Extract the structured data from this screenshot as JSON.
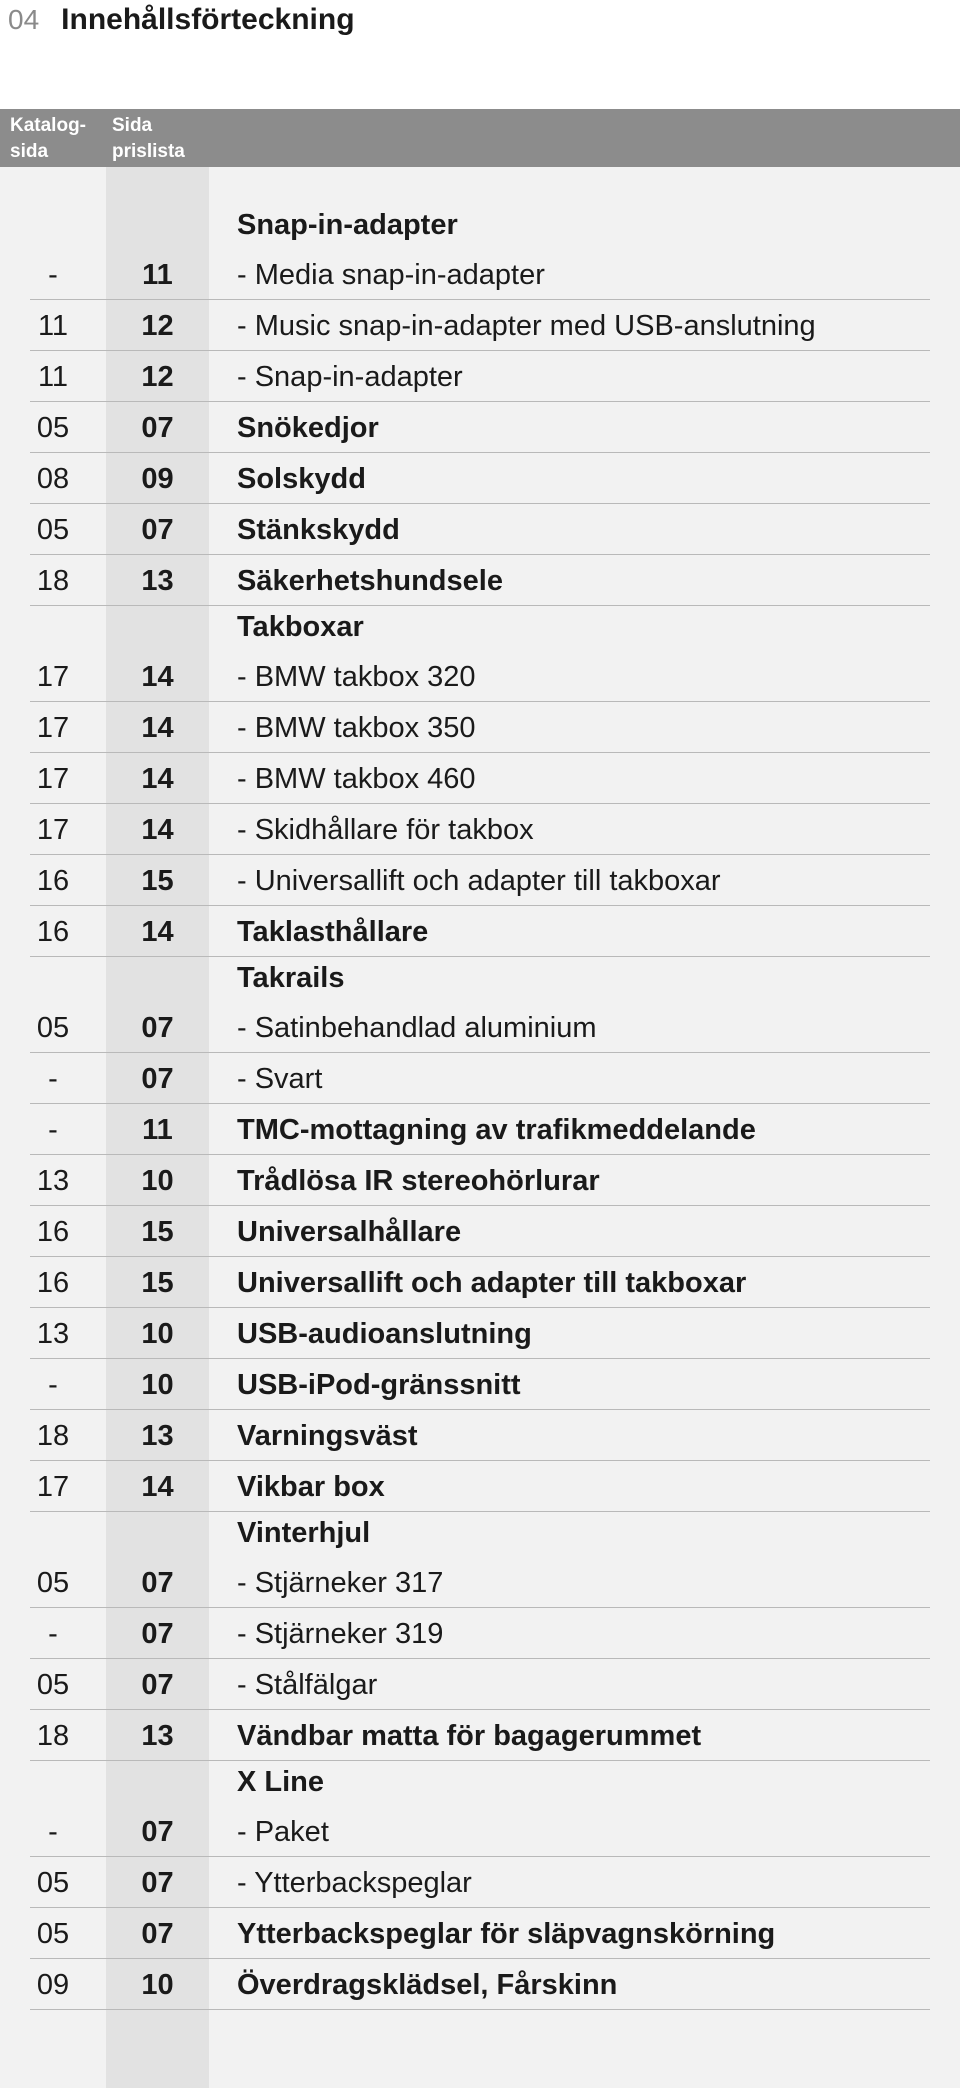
{
  "header": {
    "page_number": "04",
    "title": "Innehållsförteckning"
  },
  "columns": {
    "catalog": "Katalog-sida",
    "catalog_line1": "Katalog-",
    "catalog_line2": "sida",
    "pricelist_line1": "Sida",
    "pricelist_line2": "prislista"
  },
  "rows": [
    {
      "group": "Snap-in-adapter",
      "catalog": "-",
      "pricelist": "11",
      "text": "- Media snap-in-adapter",
      "bold": false
    },
    {
      "group": "",
      "catalog": "11",
      "pricelist": "12",
      "text": "- Music snap-in-adapter med USB-anslutning",
      "bold": false
    },
    {
      "group": "",
      "catalog": "11",
      "pricelist": "12",
      "text": "- Snap-in-adapter",
      "bold": false
    },
    {
      "group": "",
      "catalog": "05",
      "pricelist": "07",
      "text": "Snökedjor",
      "bold": true
    },
    {
      "group": "",
      "catalog": "08",
      "pricelist": "09",
      "text": "Solskydd",
      "bold": true
    },
    {
      "group": "",
      "catalog": "05",
      "pricelist": "07",
      "text": "Stänkskydd",
      "bold": true
    },
    {
      "group": "",
      "catalog": "18",
      "pricelist": "13",
      "text": "Säkerhetshundsele",
      "bold": true
    },
    {
      "group": "Takboxar",
      "catalog": "17",
      "pricelist": "14",
      "text": "- BMW takbox 320",
      "bold": false
    },
    {
      "group": "",
      "catalog": "17",
      "pricelist": "14",
      "text": "- BMW takbox 350",
      "bold": false
    },
    {
      "group": "",
      "catalog": "17",
      "pricelist": "14",
      "text": "- BMW takbox 460",
      "bold": false
    },
    {
      "group": "",
      "catalog": "17",
      "pricelist": "14",
      "text": "- Skidhållare för takbox",
      "bold": false
    },
    {
      "group": "",
      "catalog": "16",
      "pricelist": "15",
      "text": "- Universallift och adapter till takboxar",
      "bold": false
    },
    {
      "group": "",
      "catalog": "16",
      "pricelist": "14",
      "text": "Taklasthållare",
      "bold": true
    },
    {
      "group": "Takrails",
      "catalog": "05",
      "pricelist": "07",
      "text": "- Satinbehandlad aluminium",
      "bold": false
    },
    {
      "group": "",
      "catalog": "-",
      "pricelist": "07",
      "text": "- Svart",
      "bold": false
    },
    {
      "group": "",
      "catalog": "-",
      "pricelist": "11",
      "text": "TMC-mottagning av trafikmeddelande",
      "bold": true
    },
    {
      "group": "",
      "catalog": "13",
      "pricelist": "10",
      "text": "Trådlösa IR stereohörlurar",
      "bold": true
    },
    {
      "group": "",
      "catalog": "16",
      "pricelist": "15",
      "text": "Universalhållare",
      "bold": true
    },
    {
      "group": "",
      "catalog": "16",
      "pricelist": "15",
      "text": "Universallift och adapter till takboxar",
      "bold": true
    },
    {
      "group": "",
      "catalog": "13",
      "pricelist": "10",
      "text": "USB-audioanslutning",
      "bold": true
    },
    {
      "group": "",
      "catalog": "-",
      "pricelist": "10",
      "text": "USB-iPod-gränssnitt",
      "bold": true
    },
    {
      "group": "",
      "catalog": "18",
      "pricelist": "13",
      "text": "Varningsväst",
      "bold": true
    },
    {
      "group": "",
      "catalog": "17",
      "pricelist": "14",
      "text": "Vikbar box",
      "bold": true
    },
    {
      "group": "Vinterhjul",
      "catalog": "05",
      "pricelist": "07",
      "text": "- Stjärneker 317",
      "bold": false
    },
    {
      "group": "",
      "catalog": "-",
      "pricelist": "07",
      "text": "- Stjärneker 319",
      "bold": false
    },
    {
      "group": "",
      "catalog": "05",
      "pricelist": "07",
      "text": "- Stålfälgar",
      "bold": false
    },
    {
      "group": "",
      "catalog": "18",
      "pricelist": "13",
      "text": "Vändbar matta för bagagerummet",
      "bold": true
    },
    {
      "group": "X Line",
      "catalog": "-",
      "pricelist": "07",
      "text": "- Paket",
      "bold": false
    },
    {
      "group": "",
      "catalog": "05",
      "pricelist": "07",
      "text": "- Ytterbackspeglar",
      "bold": false
    },
    {
      "group": "",
      "catalog": "05",
      "pricelist": "07",
      "text": "Ytterbackspeglar för släpvagnskörning",
      "bold": true
    },
    {
      "group": "",
      "catalog": "09",
      "pricelist": "10",
      "text": "Överdragsklädsel, Fårskinn",
      "bold": true
    }
  ],
  "colors": {
    "header_bg": "#8c8c8c",
    "body_bg": "#f2f2f2",
    "pricelist_band": "#e2e2e2",
    "rule": "#b9b9b9",
    "page_number": "#8a8a8a"
  }
}
